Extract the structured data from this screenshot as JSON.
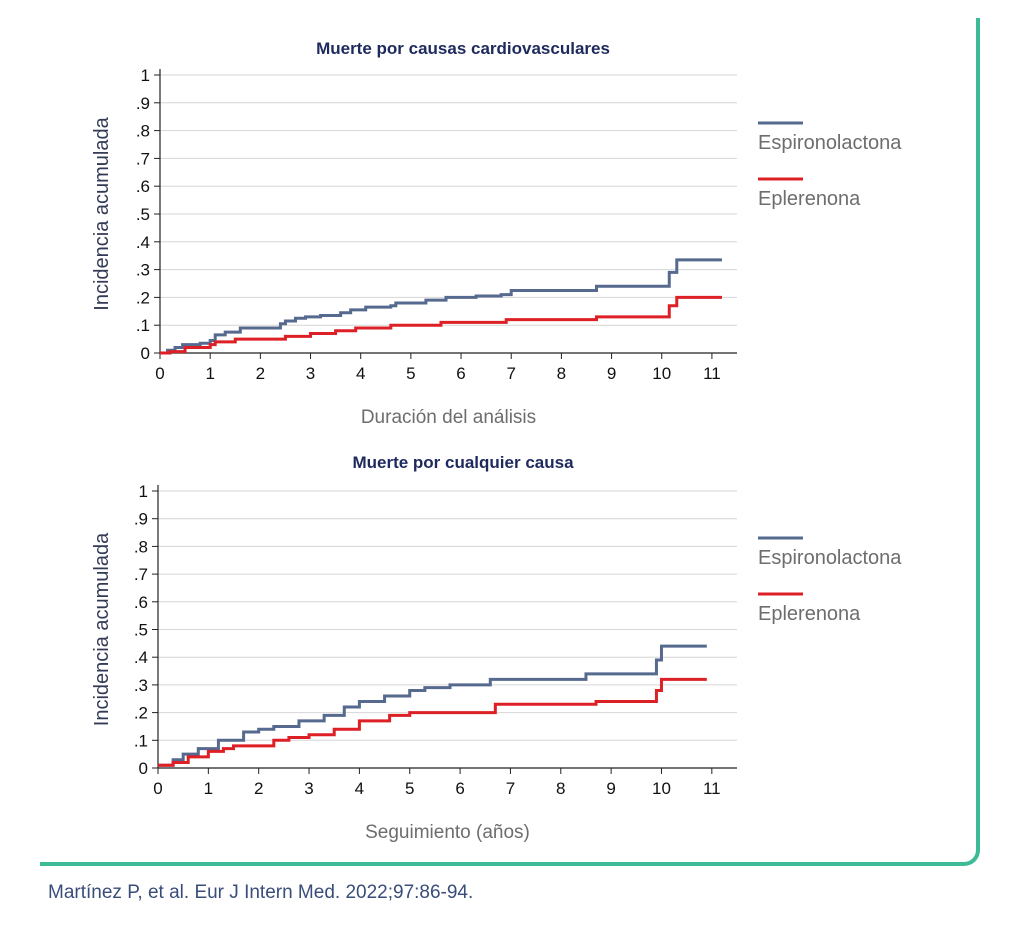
{
  "citation": "Martínez P, et al. Eur J Intern Med. 2022;97:86-94.",
  "colors": {
    "frame": "#3dba96",
    "espironolactona": "#56698f",
    "eplerenona": "#dd1f26",
    "title": "#1e2a5e",
    "label": "#333a55"
  },
  "chart_data": [
    {
      "type": "line",
      "title": "Muerte por causas cardiovasculares",
      "xlabel": "Duración del análisis",
      "ylabel": "Incidencia acumulada",
      "xlim": [
        0,
        11.5
      ],
      "ylim": [
        0,
        1
      ],
      "xticks": [
        "0",
        "1",
        "2",
        "3",
        "4",
        "5",
        "6",
        "7",
        "8",
        "9",
        "10",
        "11"
      ],
      "yticks": [
        "0",
        ".1",
        ".2",
        ".3",
        ".4",
        ".5",
        ".6",
        ".7",
        ".8",
        ".9",
        "1"
      ],
      "grid": true,
      "legend": "right",
      "series": [
        {
          "name": "Espironolactona",
          "color": "#56698f",
          "x": [
            0,
            0.15,
            0.3,
            0.45,
            0.8,
            1.0,
            1.1,
            1.3,
            1.6,
            2.4,
            2.5,
            2.7,
            2.9,
            3.2,
            3.6,
            3.8,
            4.1,
            4.6,
            4.7,
            5.3,
            5.7,
            6.3,
            6.8,
            7.0,
            8.7,
            10.15,
            10.3,
            11.2
          ],
          "y": [
            0,
            0.01,
            0.02,
            0.03,
            0.035,
            0.045,
            0.065,
            0.075,
            0.09,
            0.105,
            0.115,
            0.125,
            0.13,
            0.135,
            0.145,
            0.155,
            0.165,
            0.17,
            0.18,
            0.19,
            0.2,
            0.205,
            0.21,
            0.225,
            0.24,
            0.29,
            0.335,
            0.335
          ]
        },
        {
          "name": "Eplerenona",
          "color": "#dd1f26",
          "x": [
            0,
            0.2,
            0.5,
            1.0,
            1.1,
            1.5,
            2.5,
            3.0,
            3.5,
            3.9,
            4.6,
            5.6,
            6.9,
            8.7,
            10.15,
            10.3,
            11.2
          ],
          "y": [
            0,
            0.005,
            0.02,
            0.03,
            0.04,
            0.05,
            0.06,
            0.07,
            0.08,
            0.09,
            0.1,
            0.11,
            0.12,
            0.13,
            0.17,
            0.2,
            0.2
          ]
        }
      ]
    },
    {
      "type": "line",
      "title": "Muerte por cualquier causa",
      "xlabel": "Seguimiento (años)",
      "ylabel": "Incidencia acumulada",
      "xlim": [
        0,
        11.5
      ],
      "ylim": [
        0,
        1
      ],
      "xticks": [
        "0",
        "1",
        "2",
        "3",
        "4",
        "5",
        "6",
        "7",
        "8",
        "9",
        "10",
        "11"
      ],
      "yticks": [
        "0",
        ".1",
        ".2",
        ".3",
        ".4",
        ".5",
        ".6",
        ".7",
        ".8",
        ".9",
        "1"
      ],
      "grid": true,
      "legend": "right",
      "series": [
        {
          "name": "Espironolactona",
          "color": "#56698f",
          "x": [
            0,
            0.3,
            0.5,
            0.8,
            1.2,
            1.7,
            2.0,
            2.3,
            2.8,
            3.3,
            3.7,
            4.0,
            4.5,
            5.0,
            5.3,
            5.8,
            6.6,
            8.5,
            9.9,
            10.0,
            10.9
          ],
          "y": [
            0.01,
            0.03,
            0.05,
            0.07,
            0.1,
            0.13,
            0.14,
            0.15,
            0.17,
            0.19,
            0.22,
            0.24,
            0.26,
            0.28,
            0.29,
            0.3,
            0.32,
            0.34,
            0.39,
            0.44,
            0.44
          ]
        },
        {
          "name": "Eplerenona",
          "color": "#dd1f26",
          "x": [
            0,
            0.3,
            0.6,
            1.0,
            1.3,
            1.5,
            2.3,
            2.6,
            3.0,
            3.5,
            4.0,
            4.6,
            5.0,
            6.7,
            8.7,
            9.9,
            10.0,
            10.9
          ],
          "y": [
            0.01,
            0.02,
            0.04,
            0.06,
            0.07,
            0.08,
            0.1,
            0.11,
            0.12,
            0.14,
            0.17,
            0.19,
            0.2,
            0.23,
            0.24,
            0.28,
            0.32,
            0.32
          ]
        }
      ]
    }
  ]
}
